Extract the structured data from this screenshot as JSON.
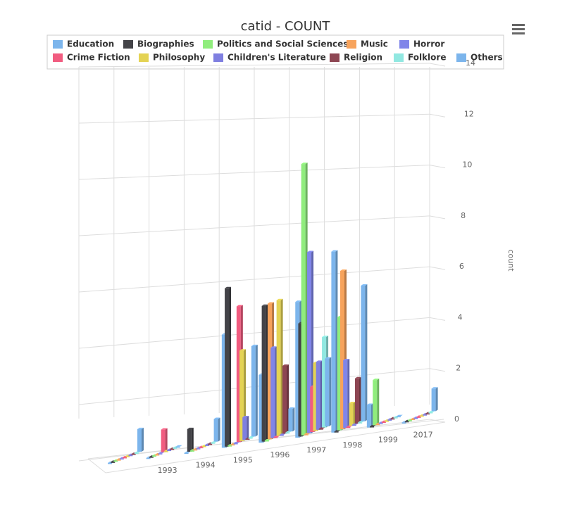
{
  "chart_data": {
    "type": "column3d",
    "title": "catid - COUNT",
    "y_axis_label": "count",
    "categories": [
      null,
      "1993",
      "1994",
      "1995",
      "1996",
      "1997",
      "1998",
      "1999",
      "2017"
    ],
    "ylim": [
      0,
      14
    ],
    "yticks": [
      0,
      2,
      4,
      6,
      8,
      10,
      12,
      14
    ],
    "grid": true,
    "series": [
      {
        "name": "Education",
        "color": "#7cb5ec",
        "values": [
          0,
          0,
          0,
          5,
          3,
          6,
          8,
          1,
          0
        ]
      },
      {
        "name": "Biographies",
        "color": "#434348",
        "values": [
          0,
          0,
          1,
          7,
          6,
          5,
          0,
          0,
          0
        ]
      },
      {
        "name": "Politics and Social Sciences",
        "color": "#90ed7d",
        "values": [
          0,
          0,
          0,
          0,
          0,
          12,
          5,
          2,
          0
        ]
      },
      {
        "name": "Music",
        "color": "#f7a35c",
        "values": [
          0,
          0,
          0,
          0,
          6,
          0,
          7,
          0,
          0
        ]
      },
      {
        "name": "Horror",
        "color": "#8085e9",
        "values": [
          0,
          0,
          0,
          0,
          4,
          8,
          3,
          0,
          0
        ]
      },
      {
        "name": "Crime Fiction",
        "color": "#f15c80",
        "values": [
          0,
          1,
          0,
          6,
          0,
          2,
          0,
          0,
          0
        ]
      },
      {
        "name": "Philosophy",
        "color": "#e4d354",
        "values": [
          0,
          0,
          0,
          4,
          6,
          3,
          1,
          0,
          0
        ]
      },
      {
        "name": "Children's Literature",
        "color": "#7f7fe0",
        "values": [
          0,
          0,
          0,
          1,
          0,
          3,
          0,
          0,
          0
        ]
      },
      {
        "name": "Religion",
        "color": "#8d4653",
        "values": [
          0,
          0,
          0,
          0,
          3,
          0,
          2,
          0,
          0
        ]
      },
      {
        "name": "Folklore",
        "color": "#91e8e1",
        "values": [
          0,
          0,
          0,
          0,
          0,
          4,
          0,
          0,
          0
        ]
      },
      {
        "name": "Others",
        "color": "#7cb5ec",
        "values": [
          1,
          0,
          1,
          4,
          1,
          3,
          6,
          0,
          1
        ]
      }
    ]
  }
}
